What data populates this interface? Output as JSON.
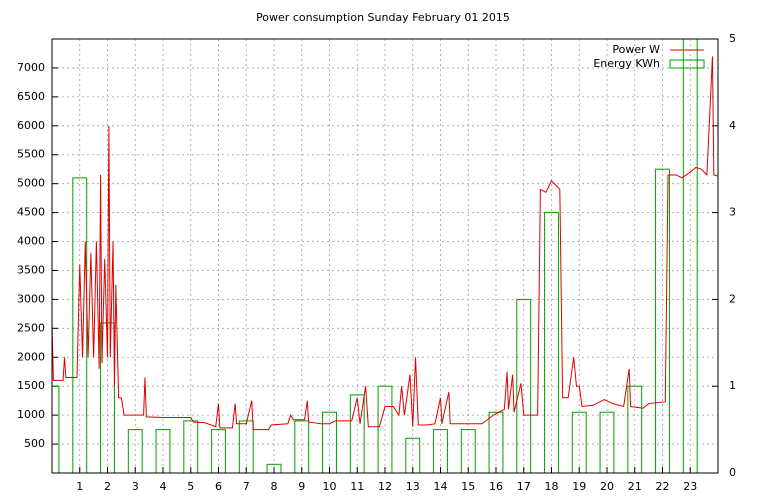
{
  "chart_data": {
    "type": "line",
    "title": "Power consumption Sunday February 01 2015",
    "xlim": [
      0,
      24
    ],
    "xticks": [
      1,
      2,
      3,
      4,
      5,
      6,
      7,
      8,
      9,
      10,
      11,
      12,
      13,
      14,
      15,
      16,
      17,
      18,
      19,
      20,
      21,
      22,
      23
    ],
    "ylim": [
      0,
      7500
    ],
    "yticks": [
      500,
      1000,
      1500,
      2000,
      2500,
      3000,
      3500,
      4000,
      4500,
      5000,
      5500,
      6000,
      6500,
      7000
    ],
    "y2lim": [
      0,
      5
    ],
    "y2ticks": [
      0,
      1,
      2,
      3,
      4,
      5
    ],
    "grid": true,
    "legend": "top-right",
    "series": [
      {
        "name": "Power W",
        "color": "#e00000",
        "type": "line",
        "x": [
          0.0,
          0.05,
          0.4,
          0.45,
          0.5,
          0.9,
          1.0,
          1.1,
          1.2,
          1.3,
          1.4,
          1.5,
          1.6,
          1.7,
          1.75,
          1.8,
          1.9,
          2.0,
          2.05,
          2.1,
          2.2,
          2.25,
          2.3,
          2.4,
          2.5,
          2.6,
          3.0,
          3.3,
          3.35,
          3.4,
          4.0,
          4.5,
          5.0,
          5.1,
          5.5,
          5.9,
          6.0,
          6.05,
          6.5,
          6.6,
          6.65,
          7.0,
          7.2,
          7.25,
          7.8,
          7.9,
          8.5,
          8.6,
          8.7,
          9.1,
          9.2,
          9.25,
          9.7,
          10.0,
          10.2,
          10.8,
          11.0,
          11.1,
          11.3,
          11.4,
          11.8,
          12.0,
          12.3,
          12.5,
          12.6,
          12.7,
          12.9,
          13.0,
          13.1,
          13.2,
          13.5,
          13.8,
          14.0,
          14.05,
          14.3,
          14.35,
          15.0,
          15.5,
          15.9,
          16.3,
          16.4,
          16.45,
          16.6,
          16.65,
          16.9,
          17.0,
          17.5,
          17.6,
          17.8,
          18.0,
          18.3,
          18.4,
          18.6,
          18.8,
          18.9,
          19.0,
          19.1,
          19.5,
          19.9,
          20.2,
          20.6,
          20.8,
          20.85,
          21.3,
          21.5,
          22.1,
          22.2,
          22.5,
          22.7,
          23.0,
          23.2,
          23.4,
          23.6,
          23.8,
          23.85,
          24.0
        ],
        "values": [
          2600,
          1600,
          1600,
          2000,
          1650,
          1650,
          3600,
          2000,
          4000,
          2000,
          3800,
          2000,
          4000,
          1800,
          5150,
          1900,
          3700,
          2000,
          6000,
          2000,
          4000,
          1500,
          3250,
          1300,
          1300,
          1000,
          1000,
          1000,
          1650,
          970,
          960,
          960,
          960,
          880,
          870,
          800,
          1200,
          780,
          780,
          1200,
          850,
          850,
          1250,
          750,
          750,
          830,
          850,
          1000,
          920,
          920,
          1250,
          880,
          850,
          850,
          900,
          900,
          1300,
          850,
          1500,
          800,
          800,
          1150,
          1150,
          1000,
          1500,
          1000,
          1700,
          800,
          2000,
          830,
          830,
          850,
          1300,
          850,
          1400,
          850,
          850,
          850,
          1000,
          1100,
          1750,
          1100,
          1700,
          1050,
          1550,
          1000,
          1000,
          4900,
          4850,
          5050,
          4900,
          1300,
          1300,
          2000,
          1500,
          1500,
          1150,
          1170,
          1270,
          1200,
          1150,
          1800,
          1150,
          1120,
          1200,
          1230,
          5150,
          5150,
          5100,
          5200,
          5280,
          5250,
          5150,
          7200,
          5150,
          5130
        ]
      },
      {
        "name": "Energy KWh",
        "color": "#00a000",
        "type": "bar",
        "axis": "y2",
        "x": [
          0,
          1,
          2,
          3,
          4,
          5,
          6,
          7,
          8,
          9,
          10,
          11,
          12,
          13,
          14,
          15,
          16,
          17,
          18,
          19,
          20,
          21,
          22,
          23
        ],
        "values": [
          1.0,
          3.4,
          1.73,
          0.5,
          0.5,
          0.6,
          0.5,
          0.6,
          0.1,
          0.6,
          0.7,
          0.9,
          1.0,
          0.4,
          0.5,
          0.5,
          0.7,
          2.0,
          3.0,
          0.7,
          0.7,
          1.0,
          3.5,
          5.3
        ]
      }
    ]
  }
}
